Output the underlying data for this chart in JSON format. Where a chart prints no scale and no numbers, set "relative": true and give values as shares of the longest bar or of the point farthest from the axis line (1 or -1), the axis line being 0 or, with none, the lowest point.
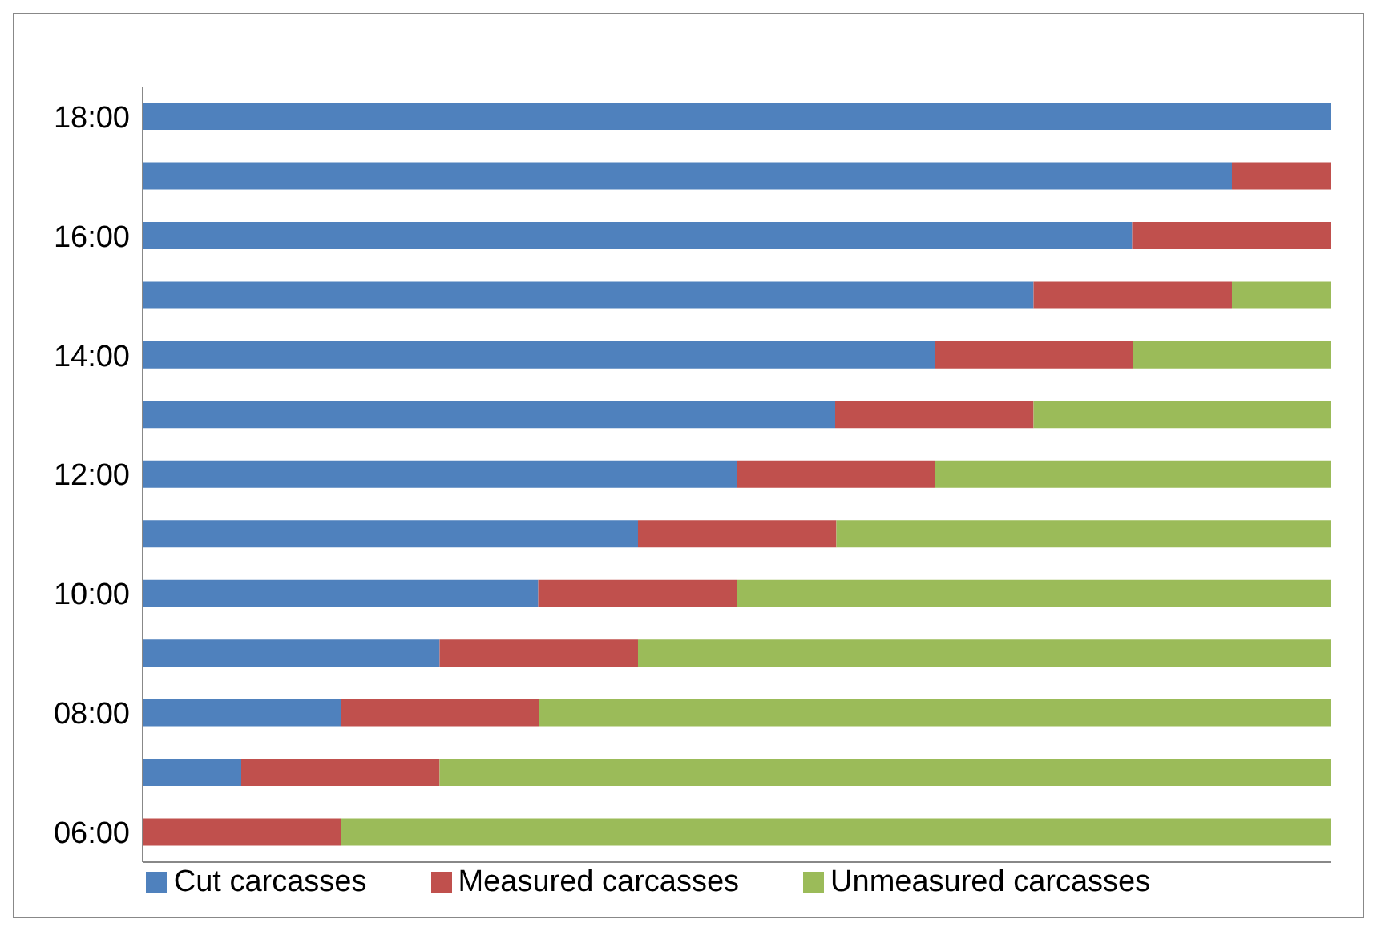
{
  "chart_data": {
    "type": "bar",
    "orientation": "horizontal",
    "stacked": true,
    "relative": true,
    "categories": [
      "18:00",
      null,
      "16:00",
      null,
      "14:00",
      null,
      "12:00",
      null,
      "10:00",
      null,
      "08:00",
      null,
      "06:00"
    ],
    "series": [
      {
        "name": "Cut carcasses",
        "color": "#4f81bd",
        "values": [
          1,
          0.917,
          0.833,
          0.75,
          0.667,
          0.583,
          0.5,
          0.417,
          0.333,
          0.25,
          0.167,
          0.083,
          0
        ]
      },
      {
        "name": "Measured carcasses",
        "color": "#c0504d",
        "values": [
          0,
          0.083,
          0.167,
          0.167,
          0.167,
          0.167,
          0.167,
          0.167,
          0.167,
          0.167,
          0.167,
          0.167,
          0.167
        ]
      },
      {
        "name": "Unmeasured carcasses",
        "color": "#9bbb59",
        "values": [
          0,
          0,
          0,
          0.083,
          0.166,
          0.25,
          0.333,
          0.416,
          0.5,
          0.583,
          0.666,
          0.75,
          0.833
        ]
      }
    ],
    "legend": "bottom",
    "grid": false
  }
}
